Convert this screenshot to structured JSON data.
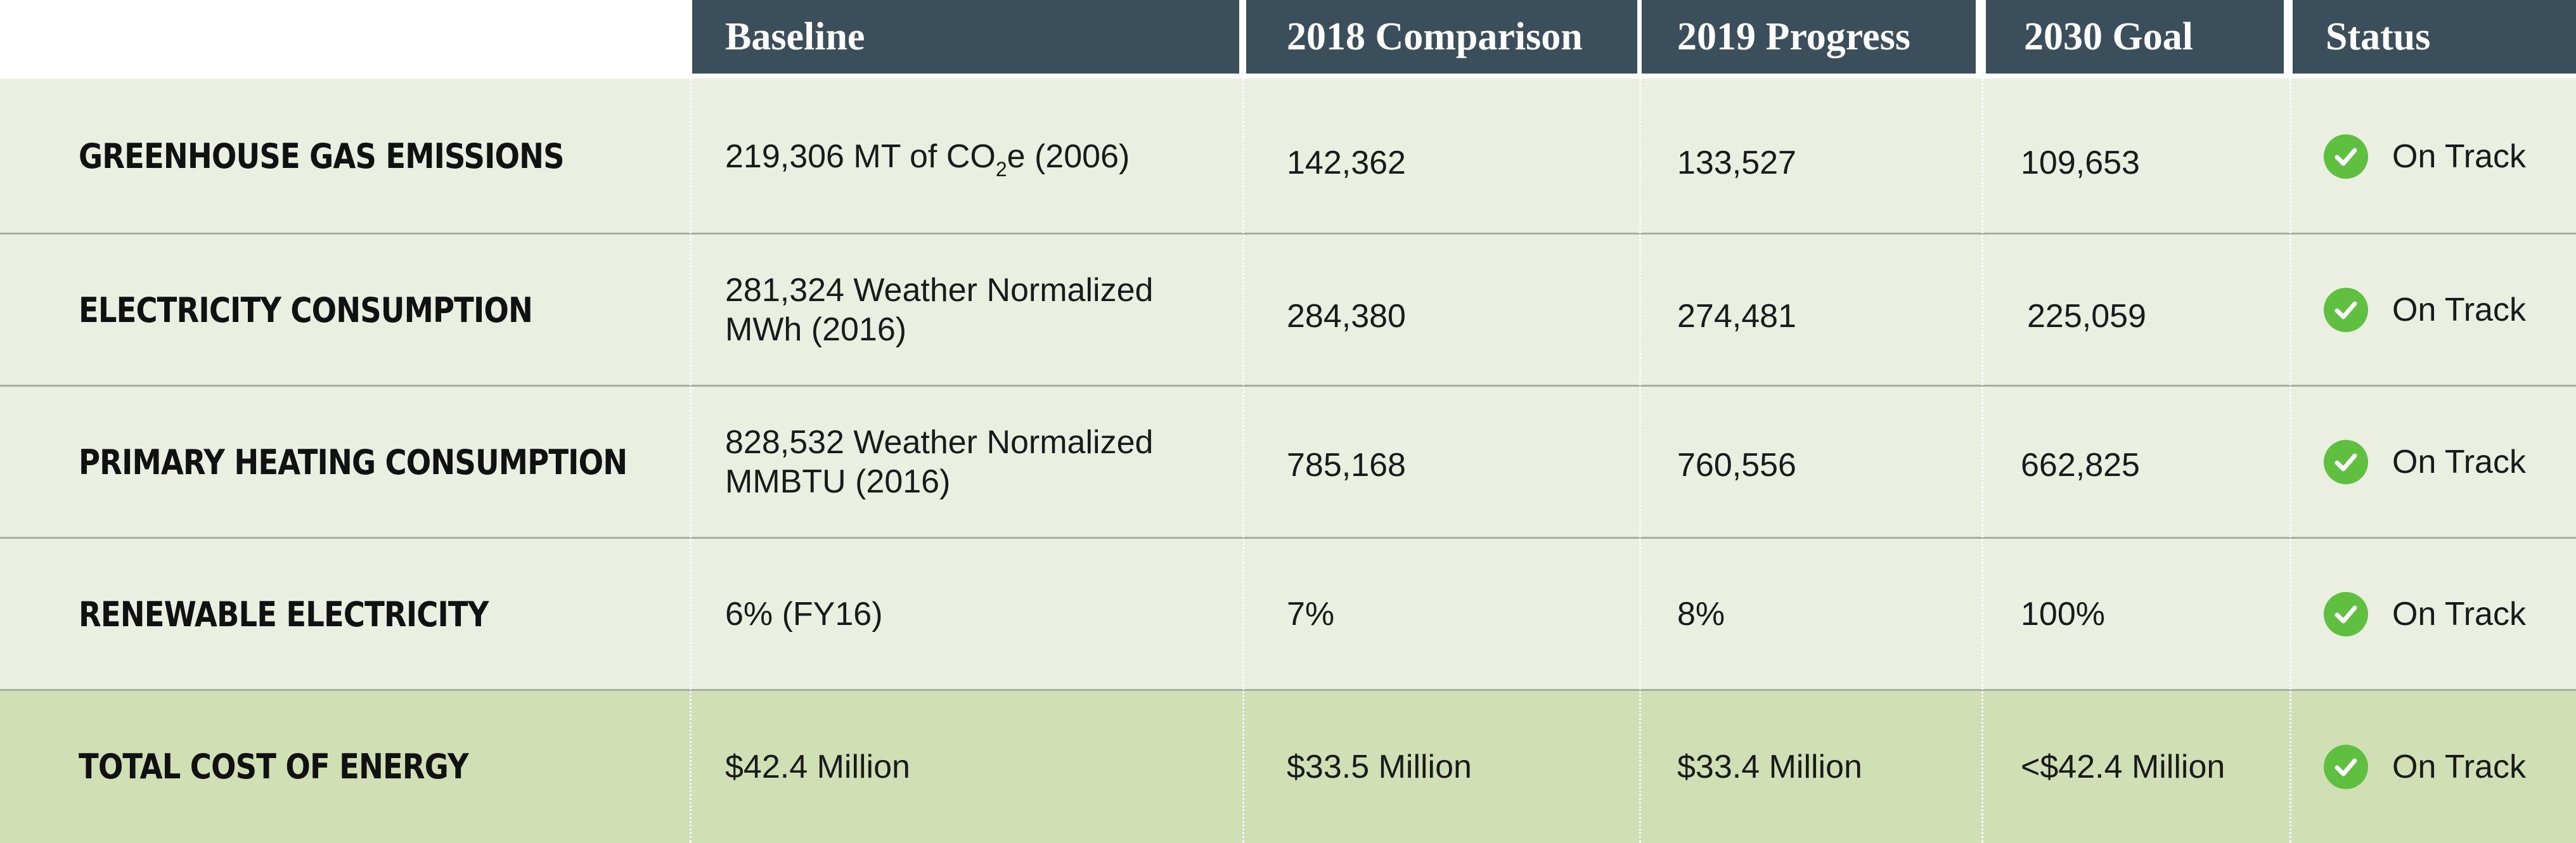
{
  "headers": {
    "baseline": "Baseline",
    "comparison_2018": "2018 Comparison",
    "progress_2019": "2019 Progress",
    "goal_2030": "2030 Goal",
    "status": "Status"
  },
  "rows": [
    {
      "label": "GREENHOUSE GAS EMISSIONS",
      "baseline_pre": "219,306 MT of CO",
      "baseline_sub": "2",
      "baseline_post": "e (2006)",
      "comparison_2018": "142,362",
      "progress_2019": "133,527",
      "goal_2030": "109,653",
      "status": "On Track"
    },
    {
      "label": "ELECTRICITY CONSUMPTION",
      "baseline_line1": "281,324 Weather Normalized",
      "baseline_line2": "MWh (2016)",
      "comparison_2018": "284,380",
      "progress_2019": "274,481",
      "goal_2030": "225,059",
      "status": "On Track"
    },
    {
      "label": "PRIMARY HEATING CONSUMPTION",
      "baseline_line1": "828,532 Weather Normalized",
      "baseline_line2": "MMBTU (2016)",
      "comparison_2018": "785,168",
      "progress_2019": "760,556",
      "goal_2030": "662,825",
      "status": "On Track"
    },
    {
      "label": "RENEWABLE ELECTRICITY",
      "baseline": "6% (FY16)",
      "comparison_2018": "7%",
      "progress_2019": "8%",
      "goal_2030": "100%",
      "status": "On Track"
    },
    {
      "label": "TOTAL COST OF ENERGY",
      "baseline": "$42.4 Million",
      "comparison_2018": "$33.5 Million",
      "progress_2019": "$33.4 Million",
      "goal_2030": "<$42.4 Million",
      "status": "On Track"
    }
  ],
  "icons": {
    "status": "check-circle-icon"
  },
  "colors": {
    "header_bg": "#3a4f5b",
    "row_bg": "#ebefe1",
    "total_row_bg": "#d1dfb4",
    "check": "#5fbf3f"
  }
}
